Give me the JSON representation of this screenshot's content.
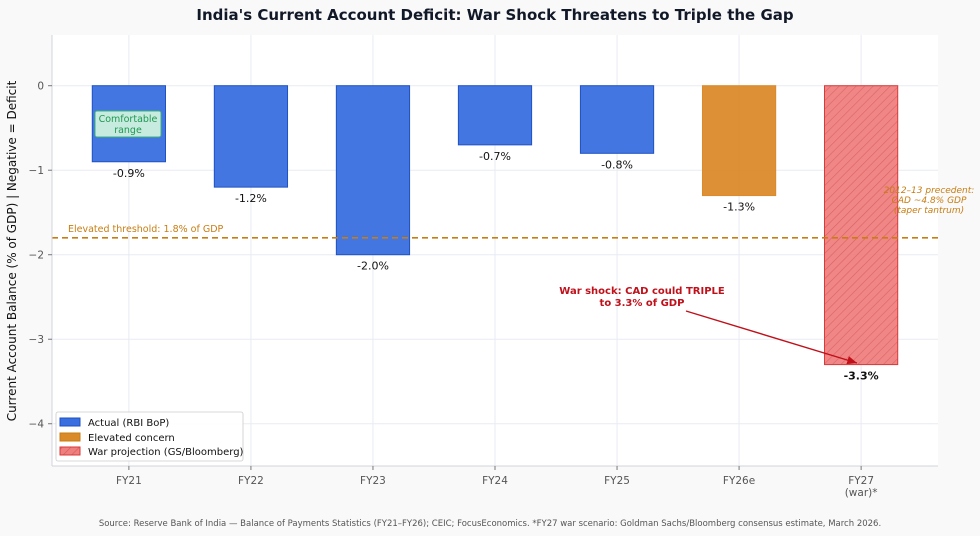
{
  "chart_data": {
    "type": "bar",
    "title": "India's Current Account Deficit: War Shock Threatens to Triple the Gap",
    "xlabel": "",
    "ylabel": "Current Account Balance (% of GDP)  |  Negative = Deficit",
    "ylim": [
      -4.5,
      0.6
    ],
    "yticks": [
      0,
      -1,
      -2,
      -3,
      -4
    ],
    "ytick_labels": [
      "0",
      "−1",
      "−2",
      "−3",
      "−4"
    ],
    "grid": true,
    "categories": [
      "FY21",
      "FY22",
      "FY23",
      "FY24",
      "FY25",
      "FY26e",
      "FY27\n(war)*"
    ],
    "values": [
      -0.9,
      -1.2,
      -2.0,
      -0.7,
      -0.8,
      -1.3,
      -3.3
    ],
    "value_labels": [
      "-0.9%",
      "-1.2%",
      "-2.0%",
      "-0.7%",
      "-0.8%",
      "-1.3%",
      "-3.3%"
    ],
    "bar_groups": [
      "actual",
      "actual",
      "actual",
      "actual",
      "actual",
      "elevated",
      "war"
    ],
    "colors": {
      "actual": "#3a6fe0",
      "actual_edge": "#1f52c4",
      "elevated": "#db8a2a",
      "war": "#ef8080",
      "war_edge": "#d83a3a",
      "threshold": "#c77d12",
      "annotation": "#c0101a"
    },
    "legend": {
      "placement": "lower-left",
      "entries": [
        {
          "key": "actual",
          "label": "Actual (RBI BoP)"
        },
        {
          "key": "elevated",
          "label": "Elevated concern"
        },
        {
          "key": "war",
          "label": "War projection (GS/Bloomberg)"
        }
      ]
    },
    "threshold": {
      "value": -1.8,
      "label": "Elevated threshold: 1.8% of GDP"
    },
    "annotations": {
      "comfortable": [
        "Comfortable",
        "range"
      ],
      "war_shock": [
        "War shock: CAD could TRIPLE",
        "to 3.3% of GDP"
      ],
      "precedent": [
        "2012–13 precedent:",
        "CAD ~4.8% GDP",
        "(taper tantrum)"
      ]
    },
    "source": "Source: Reserve Bank of India — Balance of Payments Statistics (FY21–FY26); CEIC; FocusEconomics. *FY27 war scenario: Goldman Sachs/Bloomberg consensus estimate, March 2026."
  }
}
